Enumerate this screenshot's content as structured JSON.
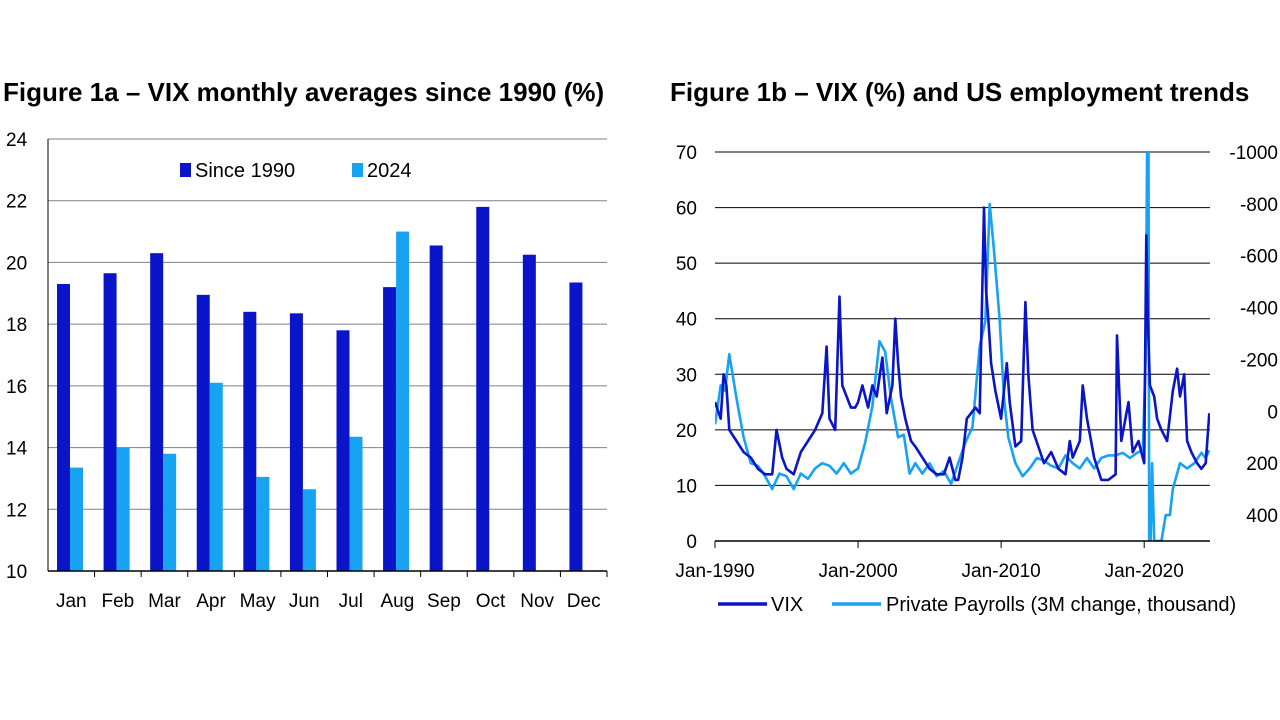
{
  "figure_a": {
    "title": "Figure 1a – VIX monthly averages since 1990 (%)"
  },
  "figure_b": {
    "title": "Figure 1b – VIX (%) and US employment trends"
  },
  "colors": {
    "dark_blue": "#0A14C8",
    "light_blue": "#17A2F2",
    "gridline": "#808080"
  },
  "chart_data": [
    {
      "type": "bar",
      "title": "Figure 1a – VIX monthly averages since 1990 (%)",
      "categories": [
        "Jan",
        "Feb",
        "Mar",
        "Apr",
        "May",
        "Jun",
        "Jul",
        "Aug",
        "Sep",
        "Oct",
        "Nov",
        "Dec"
      ],
      "series": [
        {
          "name": "Since 1990",
          "color": "#0A14C8",
          "values": [
            19.3,
            19.65,
            20.3,
            18.95,
            18.4,
            18.35,
            17.8,
            19.2,
            20.55,
            21.8,
            20.25,
            19.35
          ]
        },
        {
          "name": "2024",
          "color": "#17A2F2",
          "values": [
            13.35,
            14.0,
            13.8,
            16.1,
            13.05,
            12.65,
            14.35,
            21.0,
            null,
            null,
            null,
            null
          ]
        }
      ],
      "ylim": [
        10,
        24
      ],
      "yticks": [
        10,
        12,
        14,
        16,
        18,
        20,
        22,
        24
      ],
      "legend_position": "top-center",
      "grid": true
    },
    {
      "type": "line",
      "title": "Figure 1b – VIX (%) and US employment trends",
      "x_start": 1990.0,
      "x_end": 2024.6,
      "xticks": [
        {
          "label": "Jan-1990",
          "value": 1990
        },
        {
          "label": "Jan-2000",
          "value": 2000
        },
        {
          "label": "Jan-2010",
          "value": 2010
        },
        {
          "label": "Jan-2020",
          "value": 2020
        }
      ],
      "ylim_left": [
        0,
        70
      ],
      "yticks_left": [
        0,
        10,
        20,
        30,
        40,
        50,
        60,
        70
      ],
      "ylim_right": [
        500,
        -1000
      ],
      "yticks_right": [
        400,
        200,
        0,
        -200,
        -400,
        -600,
        -800,
        -1000
      ],
      "right_axis_inverted": true,
      "grid": true,
      "legend_position": "bottom-center",
      "series": [
        {
          "name": "VIX",
          "axis": "left",
          "color": "#0A14C8",
          "x": [
            1990.0,
            1990.4,
            1990.6,
            1990.8,
            1991.0,
            1991.5,
            1992.0,
            1992.5,
            1993.0,
            1993.5,
            1994.0,
            1994.3,
            1994.7,
            1995.0,
            1995.5,
            1996.0,
            1996.5,
            1997.0,
            1997.5,
            1997.8,
            1998.0,
            1998.4,
            1998.7,
            1998.9,
            1999.2,
            1999.5,
            1999.8,
            2000.0,
            2000.3,
            2000.7,
            2001.0,
            2001.3,
            2001.7,
            2002.0,
            2002.4,
            2002.6,
            2002.8,
            2003.0,
            2003.3,
            2003.7,
            2004.0,
            2004.5,
            2005.0,
            2005.5,
            2006.0,
            2006.4,
            2006.8,
            2007.0,
            2007.3,
            2007.6,
            2007.9,
            2008.2,
            2008.5,
            2008.8,
            2008.95,
            2009.1,
            2009.3,
            2009.6,
            2010.0,
            2010.4,
            2010.6,
            2011.0,
            2011.4,
            2011.7,
            2011.9,
            2012.2,
            2012.6,
            2013.0,
            2013.5,
            2014.0,
            2014.5,
            2014.8,
            2015.0,
            2015.5,
            2015.7,
            2016.0,
            2016.5,
            2017.0,
            2017.5,
            2018.0,
            2018.1,
            2018.4,
            2018.9,
            2019.2,
            2019.6,
            2020.0,
            2020.15,
            2020.25,
            2020.4,
            2020.7,
            2020.9,
            2021.2,
            2021.6,
            2022.0,
            2022.3,
            2022.5,
            2022.8,
            2023.0,
            2023.3,
            2023.7,
            2024.0,
            2024.3,
            2024.55
          ],
          "y": [
            25,
            22,
            30,
            28,
            20,
            18,
            16,
            15,
            13,
            12,
            12,
            20,
            15,
            13,
            12,
            16,
            18,
            20,
            23,
            35,
            22,
            20,
            44,
            28,
            26,
            24,
            24,
            25,
            28,
            24,
            28,
            26,
            33,
            23,
            28,
            40,
            32,
            26,
            22,
            18,
            17,
            15,
            13,
            12,
            12,
            15,
            11,
            11,
            15,
            22,
            23,
            24,
            23,
            60,
            45,
            40,
            32,
            27,
            22,
            32,
            25,
            17,
            18,
            43,
            30,
            20,
            17,
            14,
            16,
            13,
            12,
            18,
            15,
            18,
            28,
            22,
            15,
            11,
            11,
            12,
            37,
            18,
            25,
            16,
            18,
            14,
            55,
            40,
            28,
            26,
            22,
            20,
            18,
            27,
            31,
            26,
            30,
            18,
            16,
            14,
            13,
            14,
            23
          ]
        },
        {
          "name": "Private Payrolls (3M change, thousand)",
          "axis": "right",
          "color": "#17A2F2",
          "x": [
            1990.0,
            1990.4,
            1990.7,
            1991.0,
            1991.5,
            1992.0,
            1992.5,
            1993.0,
            1993.5,
            1994.0,
            1994.5,
            1995.0,
            1995.5,
            1996.0,
            1996.5,
            1997.0,
            1997.5,
            1998.0,
            1998.5,
            1999.0,
            1999.5,
            2000.0,
            2000.5,
            2001.0,
            2001.5,
            2001.9,
            2002.3,
            2002.8,
            2003.2,
            2003.6,
            2004.0,
            2004.5,
            2005.0,
            2005.5,
            2006.0,
            2006.5,
            2007.0,
            2007.5,
            2008.0,
            2008.5,
            2008.9,
            2009.2,
            2009.5,
            2009.9,
            2010.2,
            2010.5,
            2011.0,
            2011.5,
            2012.0,
            2012.5,
            2013.0,
            2013.5,
            2014.0,
            2014.5,
            2015.0,
            2015.5,
            2016.0,
            2016.5,
            2017.0,
            2017.5,
            2018.0,
            2018.5,
            2019.0,
            2019.5,
            2019.9,
            2020.1,
            2020.2,
            2020.3,
            2020.35,
            2020.45,
            2020.55,
            2020.7,
            2020.9,
            2021.2,
            2021.5,
            2021.8,
            2022.0,
            2022.5,
            2023.0,
            2023.5,
            2024.0,
            2024.3,
            2024.55
          ],
          "y": [
            50,
            -100,
            -80,
            -220,
            -50,
            100,
            200,
            210,
            250,
            300,
            240,
            250,
            300,
            240,
            260,
            220,
            200,
            210,
            240,
            200,
            240,
            220,
            120,
            -20,
            -270,
            -230,
            -50,
            100,
            90,
            240,
            200,
            240,
            200,
            250,
            230,
            280,
            200,
            120,
            60,
            -250,
            -350,
            -800,
            -620,
            -350,
            -50,
            100,
            200,
            250,
            220,
            180,
            190,
            210,
            220,
            170,
            200,
            220,
            180,
            220,
            180,
            170,
            170,
            160,
            180,
            160,
            150,
            -200,
            -1000,
            -1000,
            500,
            500,
            200,
            500,
            500,
            500,
            400,
            400,
            300,
            200,
            220,
            200,
            160,
            180,
            150
          ]
        }
      ]
    }
  ]
}
